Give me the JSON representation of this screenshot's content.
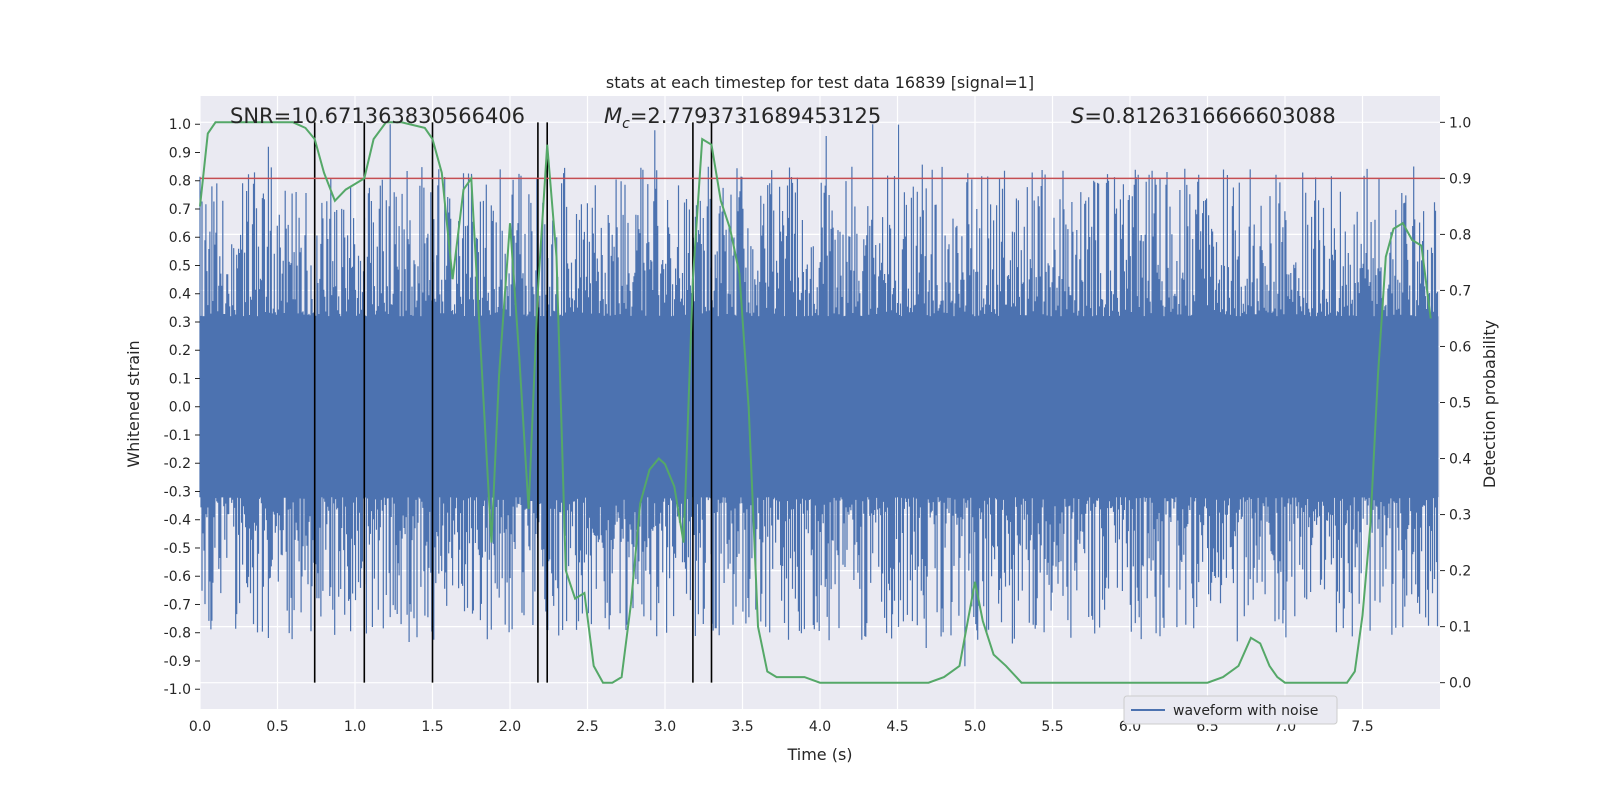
{
  "chart_data": {
    "type": "line",
    "title": "stats at each timestep for test data 16839 [signal=1]",
    "xlabel": "Time (s)",
    "ylabel": "Whitened strain",
    "y2label": "Detection probability",
    "xlim": [
      0.0,
      8.0
    ],
    "ylim": [
      -1.07,
      1.1
    ],
    "y2lim": [
      -0.047,
      1.047
    ],
    "x_ticks": [
      "0.0",
      "0.5",
      "1.0",
      "1.5",
      "2.0",
      "2.5",
      "3.0",
      "3.5",
      "4.0",
      "4.5",
      "5.0",
      "5.5",
      "6.0",
      "6.5",
      "7.0",
      "7.5"
    ],
    "y_ticks": [
      "1.0",
      "0.9",
      "0.8",
      "0.7",
      "0.6",
      "0.5",
      "0.4",
      "0.3",
      "0.2",
      "0.1",
      "0.0",
      "-0.1",
      "-0.2",
      "-0.3",
      "-0.4",
      "-0.5",
      "-0.6",
      "-0.7",
      "-0.8",
      "-0.9",
      "-1.0"
    ],
    "y2_ticks": [
      "1.0",
      "0.9",
      "0.8",
      "0.7",
      "0.6",
      "0.5",
      "0.4",
      "0.3",
      "0.2",
      "0.1",
      "0.0"
    ],
    "annotations": {
      "snr": "SNR=10.671363830566406",
      "mc_prefix": "M",
      "mc_sub": "c",
      "mc_value": "=2.7793731689453125",
      "s_prefix": "S",
      "s_value": "=0.8126316666603088"
    },
    "threshold": {
      "y2": 0.9,
      "color": "#c44e52"
    },
    "event_lines": [
      0.74,
      1.06,
      1.5,
      2.18,
      2.24,
      3.18,
      3.3
    ],
    "event_line_range_y2": [
      0.0,
      1.0
    ],
    "legend": {
      "label": "waveform with noise",
      "placement": "lower-right"
    },
    "series": [
      {
        "name": "waveform with noise",
        "axis": "left",
        "color": "#4c72b0",
        "noise_envelope": {
          "core_amplitude": 0.32,
          "peak_max": 1.0,
          "peak_min": -0.97
        }
      },
      {
        "name": "detection probability",
        "axis": "right",
        "color": "#55a868",
        "x": [
          0.0,
          0.05,
          0.1,
          0.2,
          0.3,
          0.4,
          0.5,
          0.6,
          0.68,
          0.74,
          0.8,
          0.87,
          0.94,
          1.0,
          1.06,
          1.12,
          1.2,
          1.3,
          1.45,
          1.5,
          1.56,
          1.63,
          1.7,
          1.75,
          1.82,
          1.88,
          1.93,
          2.0,
          2.06,
          2.12,
          2.18,
          2.24,
          2.3,
          2.36,
          2.42,
          2.48,
          2.54,
          2.6,
          2.66,
          2.72,
          2.78,
          2.84,
          2.9,
          2.96,
          3.0,
          3.06,
          3.12,
          3.18,
          3.24,
          3.3,
          3.36,
          3.42,
          3.48,
          3.54,
          3.6,
          3.66,
          3.72,
          3.8,
          3.9,
          4.0,
          4.2,
          4.4,
          4.6,
          4.7,
          4.8,
          4.9,
          5.0,
          5.05,
          5.12,
          5.2,
          5.3,
          5.5,
          5.8,
          6.0,
          6.3,
          6.5,
          6.6,
          6.7,
          6.78,
          6.84,
          6.9,
          6.95,
          7.0,
          7.1,
          7.2,
          7.3,
          7.4,
          7.45,
          7.5,
          7.55,
          7.6,
          7.65,
          7.7,
          7.76,
          7.82,
          7.88,
          7.94
        ],
        "y": [
          0.85,
          0.98,
          1.0,
          1.0,
          1.0,
          1.0,
          1.0,
          1.0,
          0.99,
          0.97,
          0.91,
          0.86,
          0.88,
          0.89,
          0.9,
          0.97,
          1.0,
          1.0,
          0.99,
          0.97,
          0.91,
          0.72,
          0.88,
          0.9,
          0.55,
          0.25,
          0.55,
          0.82,
          0.58,
          0.31,
          0.7,
          0.96,
          0.76,
          0.2,
          0.15,
          0.16,
          0.03,
          0.0,
          0.0,
          0.01,
          0.14,
          0.32,
          0.38,
          0.4,
          0.39,
          0.35,
          0.25,
          0.72,
          0.97,
          0.96,
          0.86,
          0.81,
          0.73,
          0.49,
          0.1,
          0.02,
          0.01,
          0.01,
          0.01,
          0.0,
          0.0,
          0.0,
          0.0,
          0.0,
          0.01,
          0.03,
          0.18,
          0.11,
          0.05,
          0.03,
          0.0,
          0.0,
          0.0,
          0.0,
          0.0,
          0.0,
          0.01,
          0.03,
          0.08,
          0.07,
          0.03,
          0.01,
          0.0,
          0.0,
          0.0,
          0.0,
          0.0,
          0.02,
          0.12,
          0.28,
          0.55,
          0.76,
          0.81,
          0.82,
          0.79,
          0.78,
          0.65
        ]
      }
    ]
  }
}
